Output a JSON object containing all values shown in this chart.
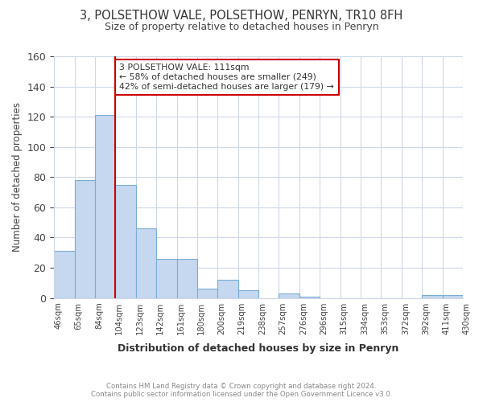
{
  "title_line1": "3, POLSETHOW VALE, POLSETHOW, PENRYN, TR10 8FH",
  "title_line2": "Size of property relative to detached houses in Penryn",
  "xlabel": "Distribution of detached houses by size in Penryn",
  "ylabel": "Number of detached properties",
  "bar_values": [
    31,
    78,
    121,
    75,
    46,
    26,
    26,
    6,
    12,
    5,
    0,
    3,
    1,
    0,
    0,
    0,
    0,
    0,
    2,
    2
  ],
  "tick_labels": [
    "46sqm",
    "65sqm",
    "84sqm",
    "104sqm",
    "123sqm",
    "142sqm",
    "161sqm",
    "180sqm",
    "200sqm",
    "219sqm",
    "238sqm",
    "257sqm",
    "276sqm",
    "296sqm",
    "315sqm",
    "334sqm",
    "353sqm",
    "372sqm",
    "392sqm",
    "411sqm",
    "430sqm"
  ],
  "bar_color": "#c5d8ef",
  "bar_edge_color": "#7badd6",
  "vline_x": 3,
  "vline_color": "#cc0000",
  "annotation_title": "3 POLSETHOW VALE: 111sqm",
  "annotation_line1": "← 58% of detached houses are smaller (249)",
  "annotation_line2": "42% of semi-detached houses are larger (179) →",
  "annotation_box_color": "#ffffff",
  "annotation_box_edge": "#cc0000",
  "ylim": [
    0,
    160
  ],
  "yticks": [
    0,
    20,
    40,
    60,
    80,
    100,
    120,
    140,
    160
  ],
  "footer_line1": "Contains HM Land Registry data © Crown copyright and database right 2024.",
  "footer_line2": "Contains public sector information licensed under the Open Government Licence v3.0.",
  "background_color": "#ffffff",
  "grid_color": "#d0d8e8"
}
